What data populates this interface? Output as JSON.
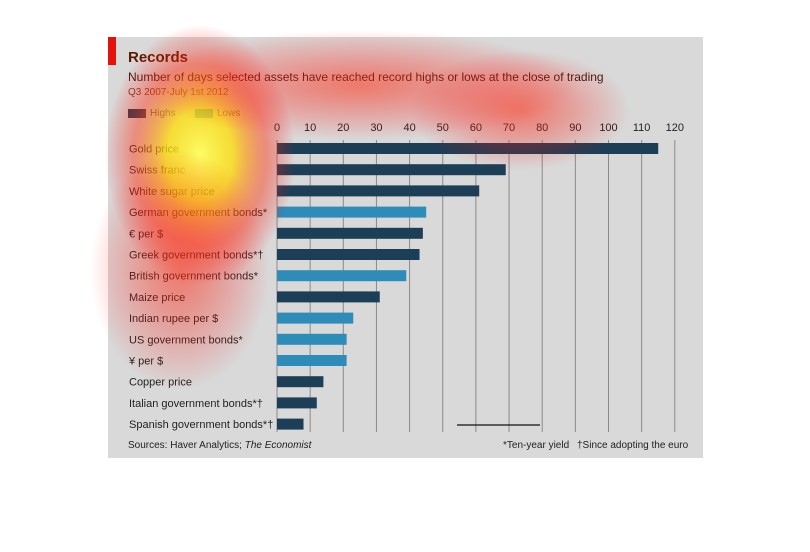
{
  "chart_data": {
    "type": "bar",
    "orientation": "horizontal",
    "title": "Records",
    "subtitle": "Number of days selected assets have reached record highs or lows at the close of trading",
    "period": "Q3 2007-July 1st 2012",
    "legend": [
      {
        "label": "Highs",
        "color": "#1c3f57"
      },
      {
        "label": "Lows",
        "color": "#2e8cb8"
      }
    ],
    "xlim": [
      0,
      120
    ],
    "xticks": [
      "0",
      "10",
      "20",
      "30",
      "40",
      "50",
      "60",
      "70",
      "80",
      "90",
      "100",
      "110",
      "120"
    ],
    "categories": [
      "Gold price",
      "Swiss franc",
      "White sugar price",
      "German government bonds*",
      "€ per $",
      "Greek government bonds*†",
      "British government bonds*",
      "Maize price",
      "Indian rupee per $",
      "US government bonds*",
      "¥ per $",
      "Copper price",
      "Italian government bonds*†",
      "Spanish government bonds*†"
    ],
    "values": [
      115,
      69,
      61,
      45,
      44,
      43,
      39,
      31,
      23,
      21,
      21,
      14,
      12,
      8
    ],
    "type_per_bar": [
      "Highs",
      "Highs",
      "Highs",
      "Lows",
      "Highs",
      "Highs",
      "Lows",
      "Highs",
      "Lows",
      "Lows",
      "Lows",
      "Highs",
      "Highs",
      "Highs"
    ],
    "grid": true
  },
  "footer": {
    "source_prefix": "Sources: Haver Analytics; ",
    "source_italic": "The Economist",
    "note1": "*Ten-year yield",
    "note2": "†Since adopting the euro"
  },
  "colors": {
    "card_bg": "#d9d9d9",
    "accent_red": "#e3120b",
    "gridline": "#8a8a8a"
  }
}
